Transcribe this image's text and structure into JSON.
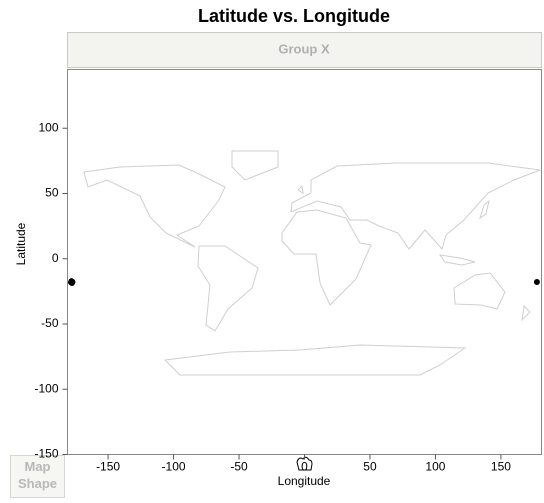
{
  "chart_data": {
    "type": "scatter",
    "title": "Latitude vs. Longitude",
    "group_label": "Group X",
    "xlabel": "Longitude",
    "ylabel": "Latitude",
    "zone_label": "Map Shape",
    "x": [
      -178,
      -177.6,
      -177.2,
      -178.3,
      177.5
    ],
    "values": [
      -17.2,
      -18.6,
      -17.8,
      -18.1,
      -17.8
    ],
    "color": "#000000",
    "xlim": [
      -181,
      181
    ],
    "xticks": [
      -150,
      -100,
      -50,
      0,
      50,
      100,
      150
    ],
    "ylim": [
      -150,
      145
    ],
    "yticks": [
      -150,
      -100,
      -50,
      0,
      50,
      100
    ],
    "grid": false
  }
}
